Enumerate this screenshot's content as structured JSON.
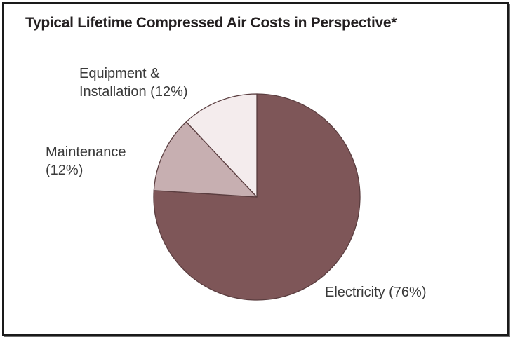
{
  "chart_data": {
    "type": "pie",
    "title": "Typical Lifetime Compressed Air Costs in Perspective*",
    "start_angle_deg": 0,
    "direction": "clockwise",
    "slices": [
      {
        "label": "Electricity",
        "value": 76,
        "color": "#7e5658",
        "text_lines": [
          "Electricity (76%)"
        ]
      },
      {
        "label": "Maintenance",
        "value": 12,
        "color": "#c7afb1",
        "text_lines": [
          "Maintenance",
          "(12%)"
        ]
      },
      {
        "label": "Equipment & Installation",
        "value": 12,
        "color": "#f4eced",
        "text_lines": [
          "Equipment &",
          "Installation (12%)"
        ]
      }
    ],
    "slice_border_color": "#5a3d3f"
  }
}
